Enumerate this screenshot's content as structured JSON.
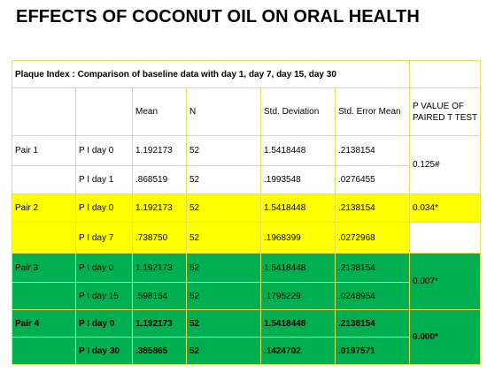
{
  "title": "EFFECTS OF COCONUT OIL ON ORAL HEALTH",
  "table": {
    "caption": "Plaque Index  :  Comparison of baseline data with day 1, day 7, day 15, day 30",
    "columns": [
      "",
      "",
      "Mean",
      "N",
      "Std. Deviation",
      "Std. Error Mean"
    ],
    "pvalue_header_line1": "P VALUE OF",
    "pvalue_header_line2": "PAIRED T TEST",
    "pairs": [
      {
        "pair": "Pair 1",
        "p_value": "0.125#",
        "color": "#ffffff",
        "rows": [
          {
            "label": "P I day 0",
            "mean": "1.192173",
            "n": "52",
            "sd": "1.5418448",
            "sem": ".2138154"
          },
          {
            "label": "P I day 1",
            "mean": ".868519",
            "n": "52",
            "sd": ".1993548",
            "sem": ".0276455"
          }
        ]
      },
      {
        "pair": "Pair 2",
        "p_value": "0.034*",
        "color": "#ffff00",
        "rows": [
          {
            "label": "P I day 0",
            "mean": "1.192173",
            "n": "52",
            "sd": "1.5418448",
            "sem": ".2138154"
          },
          {
            "label": "P I day 7",
            "mean": ".738750",
            "n": "52",
            "sd": ".1968399",
            "sem": ".0272968"
          }
        ]
      },
      {
        "pair": "Pair 3",
        "p_value": "0.007*",
        "color": "#00b050",
        "rows": [
          {
            "label": "P I day 0",
            "mean": "1.192173",
            "n": "52",
            "sd": "1.5418448",
            "sem": ".2138154"
          },
          {
            "label": "P I day 15",
            "mean": ".598154",
            "n": "52",
            "sd": ".1795229",
            "sem": ".0248954"
          }
        ]
      },
      {
        "pair": "Pair 4",
        "p_value": "0.000*",
        "color": "#00b050",
        "rows": [
          {
            "label": "P I day 0",
            "mean": "1.192173",
            "n": "52",
            "sd": "1.5418448",
            "sem": ".2138154"
          },
          {
            "label": "P I day 30",
            "mean": ".385865",
            "n": "52",
            "sd": ".1424702",
            "sem": ".0197571"
          }
        ]
      }
    ]
  }
}
